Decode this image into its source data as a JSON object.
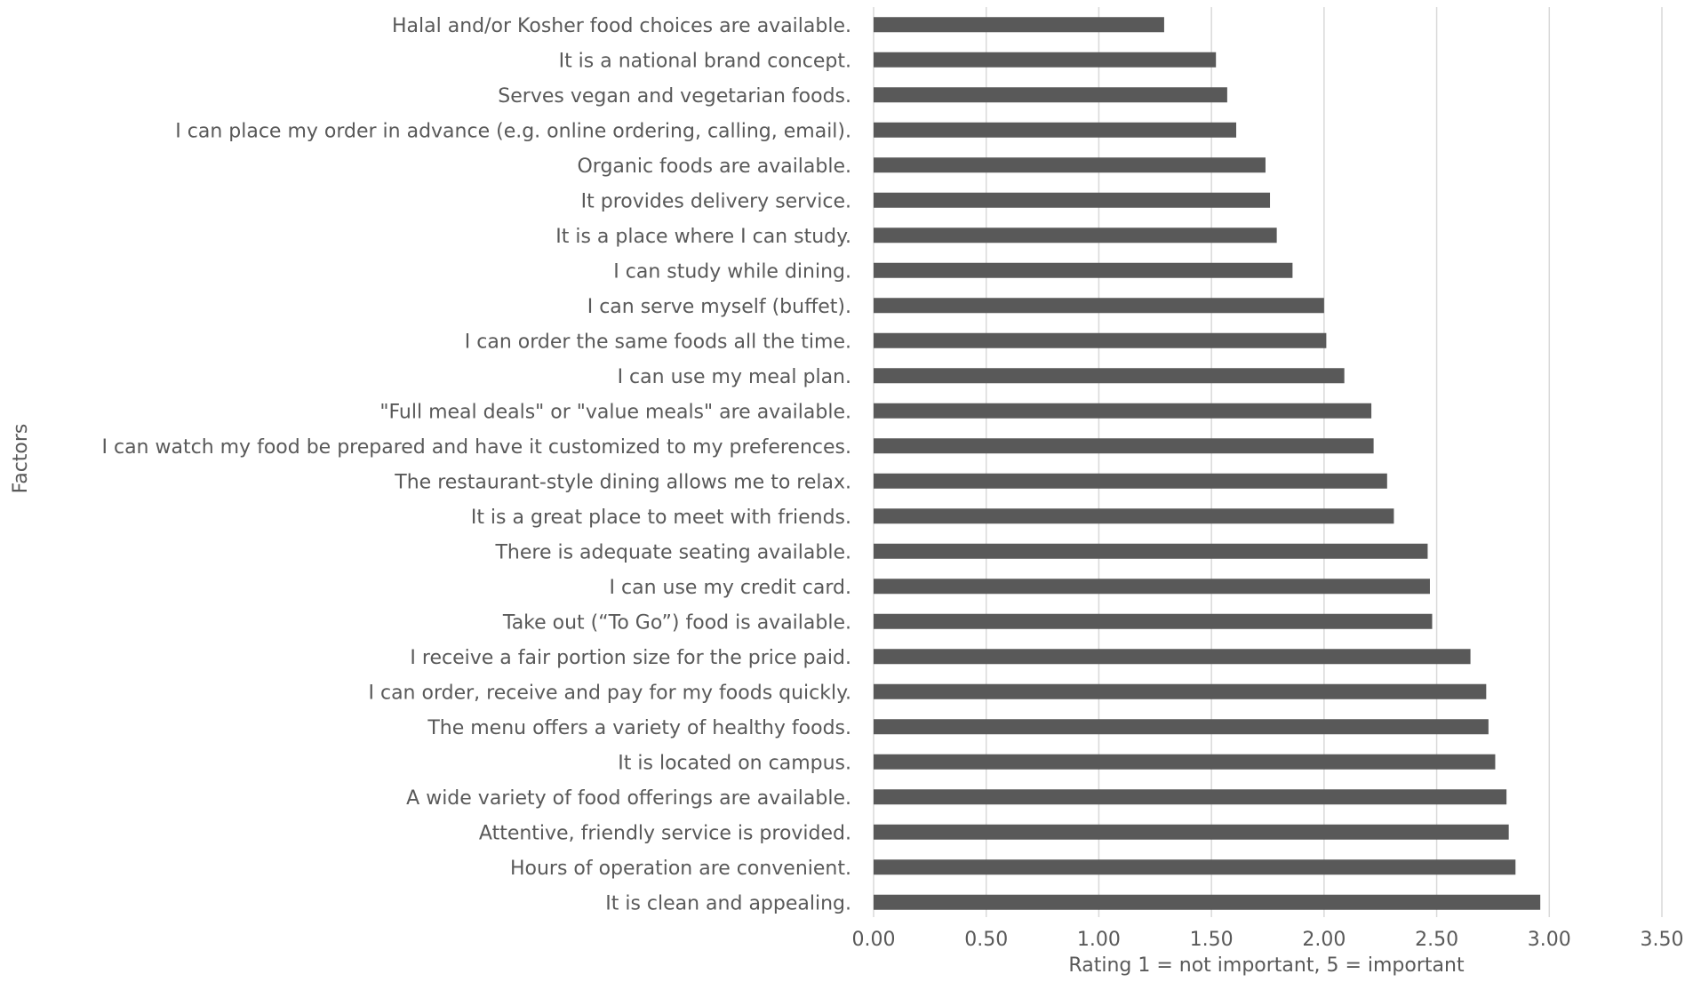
{
  "chart_data": {
    "type": "bar",
    "orientation": "horizontal",
    "title": "",
    "xlabel": "Rating 1 = not important, 5 = important",
    "ylabel": "Factors",
    "xlim": [
      0,
      3.5
    ],
    "xticks": [
      "0.00",
      "0.50",
      "1.00",
      "1.50",
      "2.00",
      "2.50",
      "3.00",
      "3.50"
    ],
    "grid": "vertical",
    "legend": "none",
    "bar_color": "#595959",
    "categories": [
      "Halal and/or Kosher food choices are available.",
      "It is a national brand concept.",
      "Serves vegan and vegetarian foods.",
      "I can place my order in advance (e.g. online ordering, calling, email).",
      "Organic foods are available.",
      "It provides delivery service.",
      "It is a place where I can study.",
      "I can study while dining.",
      "I can serve myself (buffet).",
      "I can order the same foods all the time.",
      "I can use my meal plan.",
      "\"Full meal deals\" or \"value meals\" are available.",
      "I can watch my food be prepared and have it customized to my preferences.",
      "The restaurant-style dining allows me to relax.",
      "It is a great place to meet with friends.",
      "There is adequate seating available.",
      "I can use my credit card.",
      "Take out (“To Go”) food is available.",
      "I receive a fair portion size for the price paid.",
      "I can order, receive and pay for my foods quickly.",
      "The menu offers a variety of healthy foods.",
      "It is located on campus.",
      "A wide variety of food offerings are available.",
      "Attentive, friendly service is provided.",
      "Hours of operation are convenient.",
      "It is clean and appealing."
    ],
    "values": [
      1.29,
      1.52,
      1.57,
      1.61,
      1.74,
      1.76,
      1.79,
      1.86,
      2.0,
      2.01,
      2.09,
      2.21,
      2.22,
      2.28,
      2.31,
      2.46,
      2.47,
      2.48,
      2.65,
      2.72,
      2.73,
      2.76,
      2.81,
      2.82,
      2.85,
      2.96
    ]
  }
}
